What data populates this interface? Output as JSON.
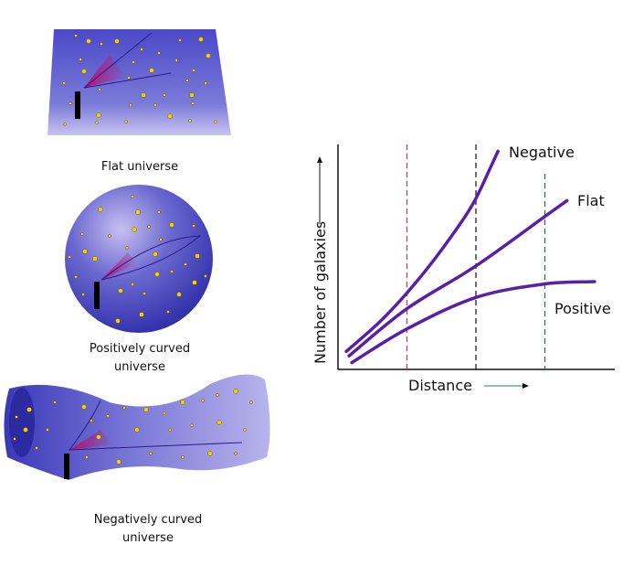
{
  "panels": {
    "flat_caption": "Flat universe",
    "positive_caption_line1": "Positively curved",
    "positive_caption_line2": "universe",
    "negative_caption_line1": "Negatively curved",
    "negative_caption_line2": "universe"
  },
  "colors": {
    "surface": "#5a5cd0",
    "star": "#f5d000",
    "curve": "#5a1fa8",
    "cone": "#c0106a"
  },
  "chart_data": {
    "type": "line",
    "xlabel": "Distance",
    "ylabel": "Number of galaxies",
    "xlim": [
      0,
      10
    ],
    "ylim": [
      0,
      10
    ],
    "grid": false,
    "dashed_x": [
      2.5,
      5,
      7.5
    ],
    "series": [
      {
        "name": "Negative",
        "x": [
          0.3,
          1.5,
          2.5,
          3.5,
          4.5,
          5.0,
          5.5,
          5.8
        ],
        "y": [
          0.8,
          2.1,
          3.4,
          4.9,
          6.6,
          7.6,
          8.9,
          9.7
        ]
      },
      {
        "name": "Flat",
        "x": [
          0.4,
          2.5,
          5.0,
          7.5,
          8.3
        ],
        "y": [
          0.6,
          2.7,
          4.6,
          6.8,
          7.5
        ]
      },
      {
        "name": "Positive",
        "x": [
          0.5,
          2.5,
          5.0,
          7.5,
          9.3
        ],
        "y": [
          0.3,
          1.8,
          3.2,
          3.8,
          3.9
        ]
      }
    ]
  }
}
